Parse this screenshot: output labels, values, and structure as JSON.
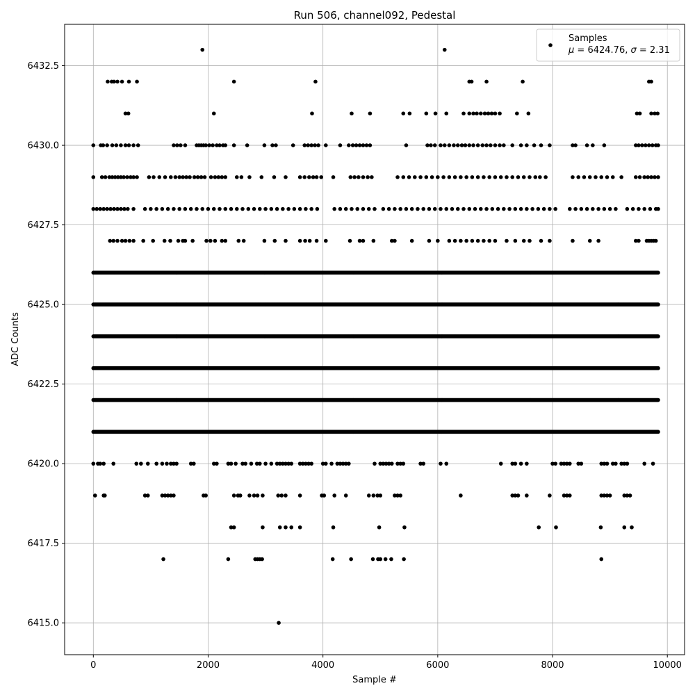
{
  "chart_data": {
    "type": "scatter",
    "title": "Run 506, channel092, Pedestal",
    "xlabel": "Sample #",
    "ylabel": "ADC Counts",
    "xlim": [
      -500,
      10300
    ],
    "ylim": [
      6414.0,
      6433.8
    ],
    "xticks": [
      0,
      2000,
      4000,
      6000,
      8000,
      10000
    ],
    "yticks": [
      6415.0,
      6417.5,
      6420.0,
      6422.5,
      6425.0,
      6427.5,
      6430.0,
      6432.5
    ],
    "xtick_labels": [
      "0",
      "2000",
      "4000",
      "6000",
      "8000",
      "10000"
    ],
    "ytick_labels": [
      "6415.0",
      "6417.5",
      "6420.0",
      "6422.5",
      "6425.0",
      "6427.5",
      "6430.0",
      "6432.5"
    ],
    "grid": true,
    "legend": {
      "position": "top-right",
      "series_label": "Samples",
      "stats_mu": "6424.76",
      "stats_sigma": "2.31"
    },
    "series": [
      {
        "name": "Samples",
        "color": "#000000",
        "x_range": [
          0,
          9850
        ],
        "levels": [
          {
            "y": 6433,
            "x": [
              1900,
              6120
            ]
          },
          {
            "y": 6432,
            "x": [
              250,
              320,
              360,
              420,
              500,
              620,
              760,
              2450,
              3870,
              6550,
              6590,
              6850,
              7480,
              9680,
              9720
            ]
          },
          {
            "y": 6431,
            "x": [
              560,
              610,
              2100,
              3810,
              4500,
              4820,
              5400,
              5510,
              5800,
              5960,
              6150,
              6450,
              6550,
              6620,
              6680,
              6750,
              6820,
              6880,
              6940,
              7000,
              7080,
              7380,
              7580,
              9470,
              9520,
              9720,
              9780,
              9830
            ]
          },
          {
            "y": 6430,
            "x": [
              0,
              130,
              170,
              240,
              330,
              400,
              480,
              560,
              620,
              700,
              780,
              1400,
              1460,
              1520,
              1600,
              1800,
              1840,
              1880,
              1920,
              1960,
              2020,
              2080,
              2150,
              2200,
              2260,
              2300,
              2450,
              2680,
              2980,
              3120,
              3180,
              3480,
              3680,
              3740,
              3800,
              3860,
              3920,
              4050,
              4300,
              4450,
              4520,
              4580,
              4640,
              4700,
              4760,
              4820,
              5450,
              5820,
              5880,
              5950,
              6050,
              6120,
              6200,
              6280,
              6350,
              6420,
              6480,
              6550,
              6620,
              6700,
              6780,
              6850,
              6920,
              7000,
              7080,
              7150,
              7300,
              7450,
              7550,
              7680,
              7800,
              7950,
              8350,
              8400,
              8600,
              8700,
              8900,
              9450,
              9500,
              9560,
              9620,
              9680,
              9740,
              9800,
              9840
            ]
          },
          {
            "y": 6429,
            "x": [
              0,
              150,
              210,
              280,
              330,
              380,
              430,
              480,
              530,
              590,
              650,
              700,
              760,
              970,
              1050,
              1150,
              1250,
              1350,
              1430,
              1500,
              1560,
              1620,
              1680,
              1760,
              1820,
              1880,
              1940,
              2050,
              2120,
              2180,
              2240,
              2300,
              2500,
              2580,
              2720,
              2930,
              3150,
              3350,
              3600,
              3680,
              3760,
              3830,
              3890,
              3970,
              4180,
              4480,
              4550,
              4620,
              4700,
              4780,
              4850,
              5300,
              5400,
              5500,
              5600,
              5700,
              5800,
              5900,
              6000,
              6100,
              6200,
              6300,
              6400,
              6500,
              6600,
              6700,
              6800,
              6900,
              7000,
              7100,
              7200,
              7300,
              7400,
              7500,
              7600,
              7700,
              7780,
              7880,
              8350,
              8450,
              8550,
              8650,
              8750,
              8850,
              8950,
              9050,
              9200,
              9450,
              9520,
              9600,
              9660,
              9720,
              9780,
              9840
            ]
          },
          {
            "y": 6428,
            "x": [
              0,
              60,
              120,
              180,
              240,
              300,
              360,
              420,
              480,
              540,
              600,
              700,
              900,
              1000,
              1100,
              1200,
              1300,
              1400,
              1500,
              1600,
              1700,
              1800,
              1900,
              2000,
              2100,
              2200,
              2300,
              2400,
              2500,
              2600,
              2700,
              2800,
              2900,
              3000,
              3100,
              3200,
              3300,
              3400,
              3500,
              3600,
              3700,
              3800,
              3900,
              4200,
              4300,
              4400,
              4500,
              4600,
              4700,
              4800,
              4900,
              5050,
              5150,
              5250,
              5350,
              5450,
              5550,
              5650,
              5750,
              5850,
              5950,
              6050,
              6150,
              6250,
              6350,
              6450,
              6550,
              6650,
              6750,
              6850,
              6950,
              7050,
              7150,
              7250,
              7350,
              7450,
              7550,
              7650,
              7750,
              7850,
              7950,
              8050,
              8300,
              8400,
              8500,
              8600,
              8700,
              8800,
              8900,
              9000,
              9100,
              9300,
              9400,
              9500,
              9600,
              9700,
              9800,
              9840
            ]
          },
          {
            "y": 6427,
            "x": [
              290,
              350,
              420,
              500,
              560,
              630,
              700,
              870,
              1040,
              1240,
              1340,
              1480,
              1560,
              1600,
              1730,
              1970,
              2040,
              2120,
              2240,
              2300,
              2530,
              2620,
              2980,
              3160,
              3350,
              3600,
              3690,
              3770,
              3890,
              4050,
              4470,
              4640,
              4700,
              4880,
              5200,
              5250,
              5550,
              5850,
              6000,
              6200,
              6300,
              6400,
              6500,
              6600,
              6700,
              6800,
              6900,
              7000,
              7200,
              7350,
              7500,
              7600,
              7800,
              7950,
              8350,
              8650,
              8800,
              9450,
              9500,
              9640,
              9680,
              9720,
              9760,
              9800
            ]
          },
          {
            "y": 6426,
            "x": [
              0,
              9850
            ]
          },
          {
            "y": 6425,
            "x": [
              0,
              9850
            ]
          },
          {
            "y": 6424,
            "x": [
              0,
              9850
            ]
          },
          {
            "y": 6423,
            "x": [
              0,
              9850
            ]
          },
          {
            "y": 6422,
            "x": [
              0,
              9850
            ]
          },
          {
            "y": 6421,
            "x": [
              0,
              9850
            ]
          },
          {
            "y": 6420,
            "x": [
              0,
              80,
              120,
              180,
              350,
              750,
              830,
              950,
              1100,
              1200,
              1280,
              1350,
              1400,
              1450,
              1700,
              1750,
              2100,
              2150,
              2350,
              2400,
              2480,
              2600,
              2650,
              2750,
              2850,
              2900,
              3000,
              3100,
              3200,
              3250,
              3300,
              3350,
              3400,
              3450,
              3600,
              3650,
              3700,
              3750,
              3800,
              4000,
              4050,
              4150,
              4250,
              4300,
              4350,
              4400,
              4450,
              4900,
              5000,
              5050,
              5100,
              5150,
              5200,
              5300,
              5350,
              5400,
              5700,
              5750,
              6050,
              6150,
              7100,
              7300,
              7350,
              7450,
              7550,
              8000,
              8050,
              8150,
              8200,
              8250,
              8300,
              8450,
              8500,
              8850,
              8900,
              8950,
              9050,
              9100,
              9200,
              9250,
              9300,
              9600,
              9750
            ]
          },
          {
            "y": 6419,
            "x": [
              30,
              180,
              200,
              900,
              950,
              1200,
              1250,
              1300,
              1350,
              1400,
              1920,
              1960,
              2450,
              2520,
              2560,
              2720,
              2800,
              2860,
              2950,
              3220,
              3280,
              3350,
              3600,
              3980,
              4020,
              4200,
              4400,
              4800,
              4880,
              4950,
              5000,
              5250,
              5300,
              5350,
              6400,
              7300,
              7350,
              7400,
              7550,
              7950,
              8200,
              8250,
              8300,
              8850,
              8900,
              8950,
              9000,
              9250,
              9300,
              9350
            ]
          },
          {
            "y": 6418,
            "x": [
              2400,
              2450,
              2950,
              3250,
              3350,
              3450,
              3600,
              4180,
              4980,
              5420,
              7760,
              8060,
              8840,
              9250,
              9380
            ]
          },
          {
            "y": 6417,
            "x": [
              1220,
              2350,
              2820,
              2860,
              2900,
              2940,
              4170,
              4490,
              4870,
              4960,
              5000,
              5090,
              5190,
              5410,
              8850
            ]
          },
          {
            "y": 6415,
            "x": [
              3230
            ]
          }
        ]
      }
    ]
  }
}
